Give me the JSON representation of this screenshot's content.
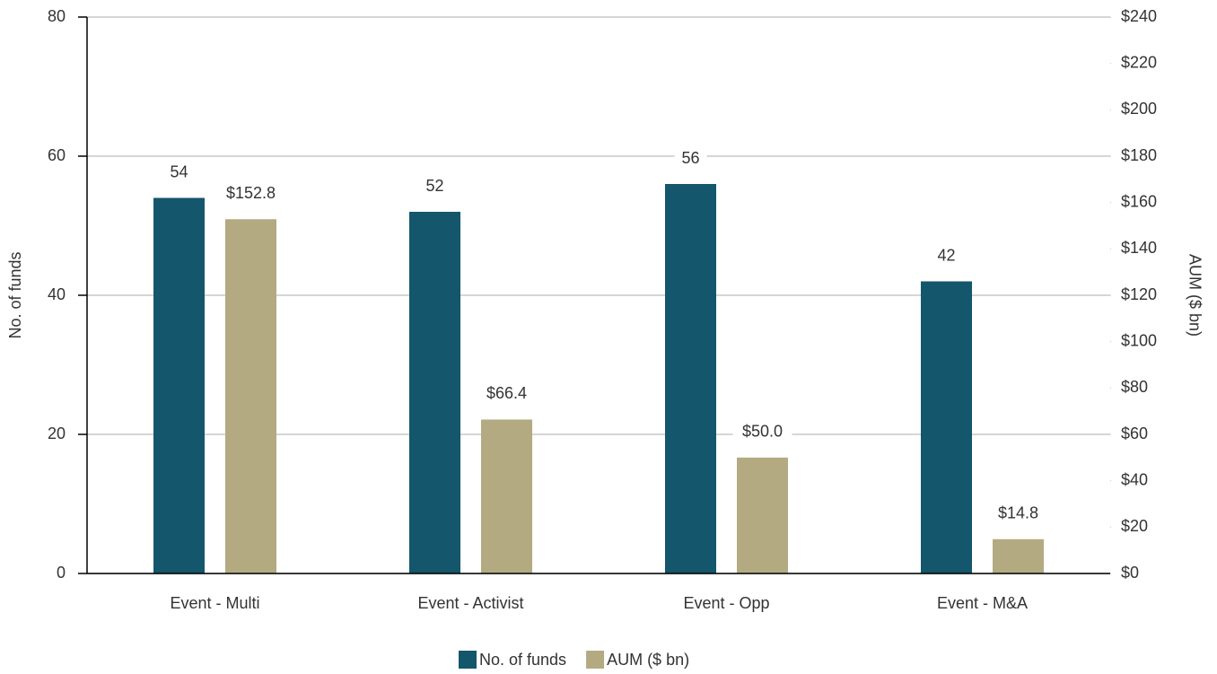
{
  "chart_data": {
    "type": "bar",
    "categories": [
      "Event - Multi",
      "Event - Activist",
      "Event - Opp",
      "Event - M&A"
    ],
    "series": [
      {
        "name": "No. of funds",
        "color": "#14566b",
        "values": [
          54,
          52,
          56,
          42
        ]
      },
      {
        "name": "AUM ($ bn)",
        "color": "#b3aa82",
        "axis": "y2",
        "values": [
          152.8,
          66.4,
          50.0,
          14.8
        ],
        "value_labels": [
          "$152.8",
          "$66.4",
          "$50.0",
          "$14.8"
        ]
      }
    ],
    "ylabel": "No. of funds",
    "y2label": "AUM ($ bn)",
    "ylim": [
      0,
      80
    ],
    "yticks": [
      0,
      20,
      40,
      60,
      80
    ],
    "y2lim": [
      0,
      240
    ],
    "y2ticks": [
      {
        "value": 0,
        "label": "$0"
      },
      {
        "value": 20,
        "label": "$20"
      },
      {
        "value": 40,
        "label": "$40"
      },
      {
        "value": 60,
        "label": "$60"
      },
      {
        "value": 80,
        "label": "$80"
      },
      {
        "value": 100,
        "label": "$100"
      },
      {
        "value": 120,
        "label": "$120"
      },
      {
        "value": 140,
        "label": "$140"
      },
      {
        "value": 160,
        "label": "$160"
      },
      {
        "value": 180,
        "label": "$180"
      },
      {
        "value": 200,
        "label": "$200"
      },
      {
        "value": 220,
        "label": "$220"
      },
      {
        "value": 240,
        "label": "$240"
      }
    ],
    "grid": true,
    "legend": "bottom"
  }
}
